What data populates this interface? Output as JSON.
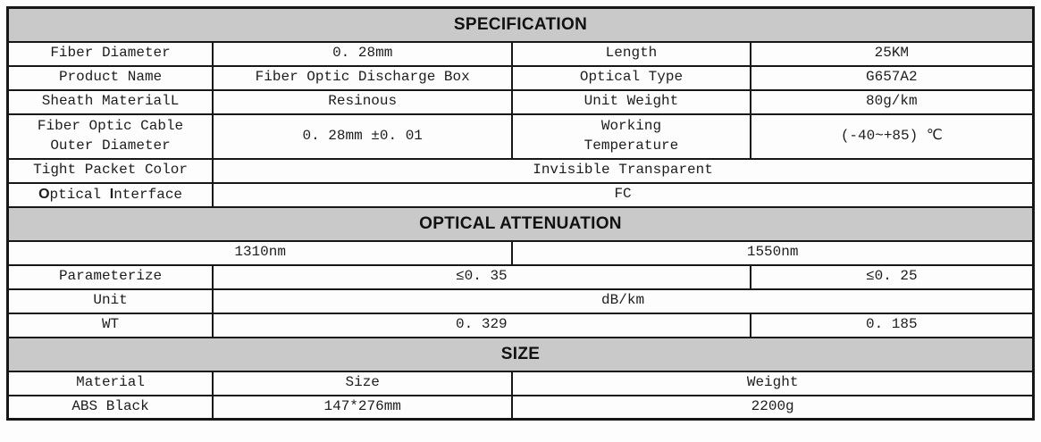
{
  "colors": {
    "band_background": "#c9c9c9",
    "border": "#171717",
    "text": "#1d1d1d",
    "page_background": "#fdfdfd"
  },
  "table": {
    "sections": [
      {
        "title": "SPECIFICATION",
        "rows": [
          {
            "cells": [
              {
                "t": "Fiber Diameter"
              },
              {
                "t": "0. 28mm"
              },
              {
                "t": "Length"
              },
              {
                "t": "25KM"
              }
            ]
          },
          {
            "cells": [
              {
                "t": "Product Name"
              },
              {
                "t": "Fiber Optic Discharge Box"
              },
              {
                "t": "Optical Type"
              },
              {
                "t": "G657A2"
              }
            ]
          },
          {
            "cells": [
              {
                "t": "Sheath MaterialL"
              },
              {
                "t": "Resinous"
              },
              {
                "t": "Unit Weight"
              },
              {
                "t": "80g/km"
              }
            ]
          },
          {
            "h": "double",
            "cells": [
              {
                "t": "Fiber Optic Cable Outer Diameter",
                "lines": [
                  "Fiber Optic Cable",
                  "Outer Diameter"
                ]
              },
              {
                "t": "0. 28mm ±0. 01"
              },
              {
                "t": "Working Temperature",
                "lines": [
                  "Working",
                  "Temperature"
                ]
              },
              {
                "t": "(-40~+85) ℃"
              }
            ]
          },
          {
            "cells": [
              {
                "t": "Tight Packet Color"
              },
              {
                "t": "Invisible Transparent",
                "span": 3
              }
            ]
          },
          {
            "cells": [
              {
                "t": "Optical Interface",
                "runs": [
                  {
                    "t": "O",
                    "alt": true
                  },
                  {
                    "t": "ptical "
                  },
                  {
                    "t": "I",
                    "alt": true
                  },
                  {
                    "t": "nterface"
                  }
                ]
              },
              {
                "t": "FC",
                "span": 3
              }
            ]
          }
        ]
      },
      {
        "title": "OPTICAL ATTENUATION",
        "rows": [
          {
            "cells": [
              {
                "t": "1310nm",
                "span": 2
              },
              {
                "t": "1550nm",
                "span": 2
              }
            ]
          },
          {
            "cells": [
              {
                "t": "Parameterize"
              },
              {
                "t": "≤0. 35",
                "span": 2
              },
              {
                "t": "≤0. 25"
              }
            ]
          },
          {
            "cells": [
              {
                "t": "Unit"
              },
              {
                "t": "dB/km",
                "span": 3
              }
            ]
          },
          {
            "cells": [
              {
                "t": "WT"
              },
              {
                "t": "0. 329",
                "span": 2
              },
              {
                "t": "0. 185"
              }
            ]
          }
        ]
      },
      {
        "title": "SIZE",
        "rows": [
          {
            "cells": [
              {
                "t": "Material"
              },
              {
                "t": "Size"
              },
              {
                "t": "Weight",
                "span": 2
              }
            ]
          },
          {
            "cells": [
              {
                "t": "ABS Black"
              },
              {
                "t": "147*276mm"
              },
              {
                "t": "2200g",
                "span": 2
              }
            ]
          }
        ]
      }
    ]
  }
}
